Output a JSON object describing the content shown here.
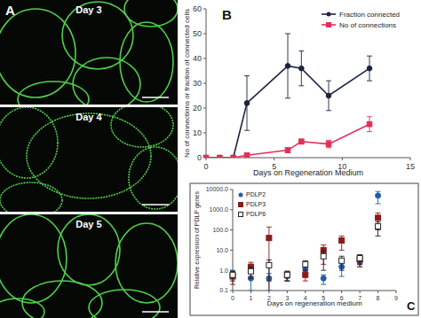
{
  "panel_a": {
    "label": "A",
    "images": [
      "Day 3",
      "Day 4",
      "Day 5"
    ]
  },
  "chart_data": [
    {
      "type": "line",
      "annotations": [
        "B"
      ],
      "x_label": "Days on Regeneration Medium",
      "y_label": "No of connections or fraction of connected cells",
      "x": [
        0,
        1,
        2,
        3,
        6,
        7,
        9,
        12
      ],
      "series": [
        {
          "name": "Fraction connected",
          "color": "#1b2340",
          "marker": "circle",
          "values": [
            0,
            0,
            0,
            22,
            37,
            36,
            25,
            36
          ],
          "errors": [
            0,
            0,
            0,
            11,
            13,
            7,
            6,
            5
          ]
        },
        {
          "name": "No of connections",
          "color": "#e0305a",
          "marker": "square",
          "values": [
            0,
            0,
            0,
            1,
            3,
            6.5,
            5.5,
            13.5
          ],
          "errors": [
            0,
            0,
            0,
            0.5,
            1,
            1,
            1.5,
            3
          ]
        }
      ],
      "xlim": [
        0,
        15
      ],
      "ylim": [
        0,
        60
      ],
      "xticks": [
        0,
        5,
        10,
        15
      ],
      "yticks": [
        0,
        10,
        20,
        30,
        40,
        50,
        60
      ],
      "grid": false,
      "legend": "upper right"
    },
    {
      "type": "scatter",
      "annotations": [
        "C"
      ],
      "x_label": "Days on regeneration medium",
      "y_label": "Relative expression of PDLP genes",
      "x": [
        0,
        1,
        2,
        3,
        4,
        5,
        6,
        7,
        8
      ],
      "series": [
        {
          "name": "PDLP2",
          "color": "#1f5fa8",
          "marker": "circle",
          "values": [
            0.7,
            0.4,
            0.4,
            0.5,
            1.2,
            0.4,
            1.5,
            2.5,
            5000
          ],
          "errors": [
            0.3,
            0.3,
            0.3,
            0.2,
            0.5,
            0.2,
            1,
            1,
            3000
          ]
        },
        {
          "name": "PDLP3",
          "color": "#8b1a1a",
          "marker": "square",
          "values": [
            0.5,
            1.5,
            40,
            0.6,
            0.6,
            10,
            30,
            3.5,
            400
          ],
          "errors": [
            0.3,
            1,
            100,
            0.3,
            0.3,
            8,
            20,
            2,
            300
          ]
        },
        {
          "name": "PDLP6",
          "color": "#222222",
          "marker": "open-square",
          "values": [
            0.6,
            0.9,
            1.8,
            0.6,
            2,
            5,
            3,
            4,
            150
          ],
          "errors": [
            0.3,
            0.5,
            1.5,
            0.3,
            1,
            4,
            2,
            2,
            100
          ]
        }
      ],
      "log": "y",
      "xlim": [
        0,
        9
      ],
      "ylim": [
        0.1,
        10000
      ],
      "xticks": [
        0,
        1,
        2,
        3,
        4,
        5,
        6,
        7,
        8,
        9
      ],
      "yticks": [
        0.1,
        {
          "value": 1,
          "label": "1.0"
        },
        {
          "value": 10,
          "label": "10.0"
        },
        {
          "value": 100,
          "label": "100.0"
        },
        {
          "value": 1000,
          "label": "1000.0"
        },
        {
          "value": 10000,
          "label": "10000.0"
        }
      ],
      "grid": false,
      "legend": "upper left"
    }
  ]
}
